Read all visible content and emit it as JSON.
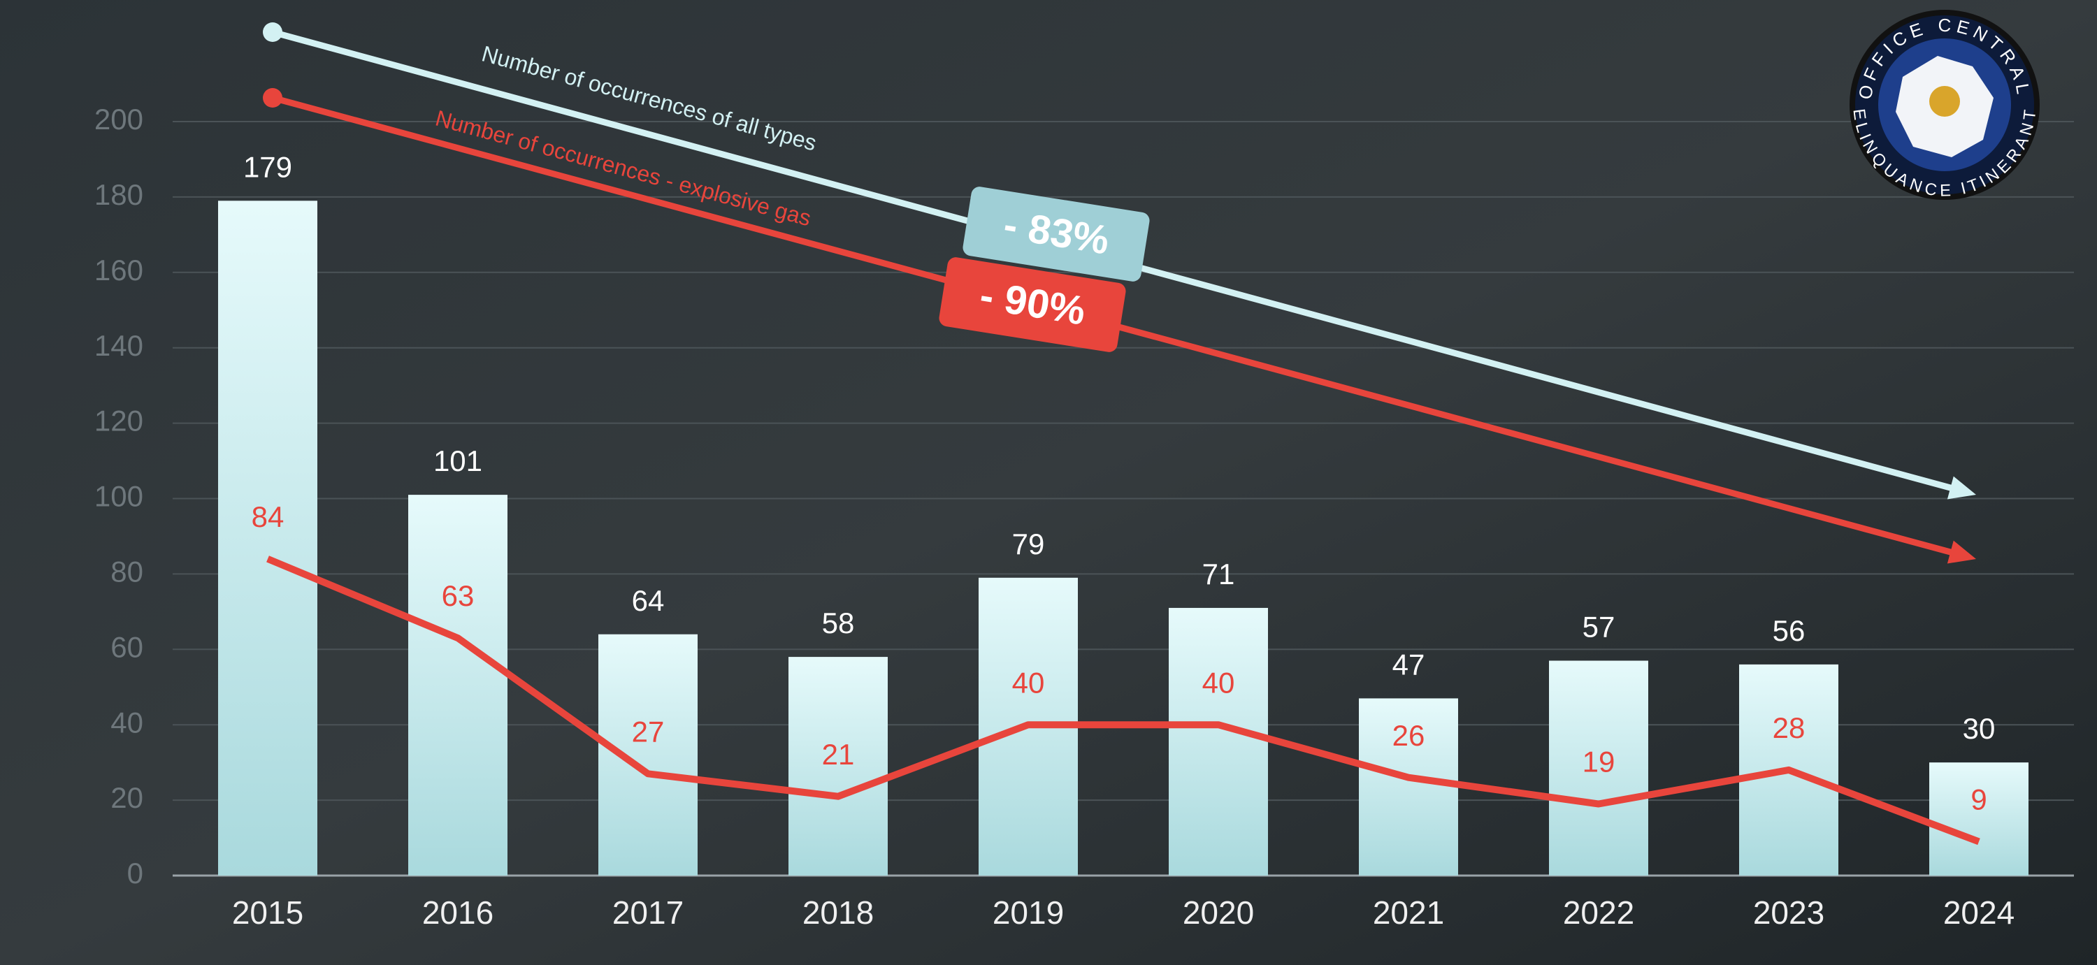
{
  "chart_data": {
    "type": "bar",
    "categories": [
      "2015",
      "2016",
      "2017",
      "2018",
      "2019",
      "2020",
      "2021",
      "2022",
      "2023",
      "2024"
    ],
    "series": [
      {
        "name": "Number of occurrences of all types",
        "type": "bar",
        "color": "#d3f1f3",
        "values": [
          179,
          101,
          64,
          58,
          79,
          71,
          47,
          57,
          56,
          30
        ]
      },
      {
        "name": "Number of occurrences - explosive gas",
        "type": "line",
        "color": "#e8453c",
        "values": [
          84,
          63,
          27,
          21,
          40,
          40,
          26,
          19,
          28,
          9
        ]
      }
    ],
    "annotations": [
      "- 83%",
      "- 90%"
    ],
    "ylim": [
      0,
      200
    ],
    "yticks": [
      0,
      20,
      40,
      60,
      80,
      100,
      120,
      140,
      160,
      180,
      200
    ],
    "grid": true,
    "logo": {
      "top_text": "OFFICE CENTRAL",
      "bottom_text": "DELINQUANCE ITINERANTE"
    }
  }
}
